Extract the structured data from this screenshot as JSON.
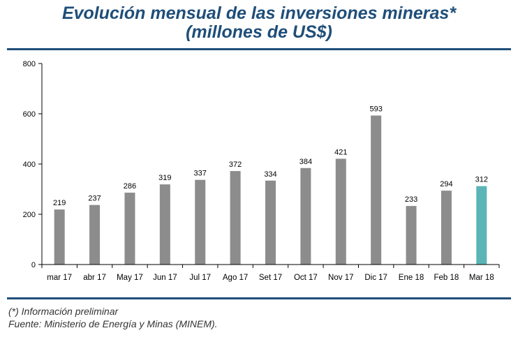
{
  "header": {
    "title_line1": "Evolución mensual de las inversiones mineras*",
    "title_line2": "(millones de US$)"
  },
  "footer": {
    "note": "(*) Información preliminar",
    "source": "Fuente: Ministerio de Energía y Minas (MINEM)."
  },
  "colors": {
    "title": "#1f4e79",
    "bar": "#8c8c8c",
    "bar_highlight": "#5bb4b6",
    "rule": "#1f4e79"
  },
  "chart_data": {
    "type": "bar",
    "categories": [
      "mar 17",
      "abr 17",
      "May 17",
      "Jun 17",
      "Jul 17",
      "Ago 17",
      "Set 17",
      "Oct 17",
      "Nov 17",
      "Dic 17",
      "Ene 18",
      "Feb 18",
      "Mar 18"
    ],
    "values": [
      219,
      237,
      286,
      319,
      337,
      372,
      334,
      384,
      421,
      593,
      233,
      294,
      312
    ],
    "data_labels": [
      "219",
      "237",
      "286",
      "319",
      "337",
      "372",
      "334",
      "384",
      "421",
      "593",
      "233",
      "294",
      "312"
    ],
    "highlight_index": 12,
    "title": "Evolución mensual de las inversiones mineras* (millones de US$)",
    "xlabel": "",
    "ylabel": "",
    "ylim": [
      0,
      800
    ],
    "yticks": [
      0,
      200,
      400,
      600,
      800
    ],
    "ytick_labels": [
      "0",
      "200",
      "400",
      "600",
      "800"
    ],
    "grid": false,
    "legend": "none"
  }
}
